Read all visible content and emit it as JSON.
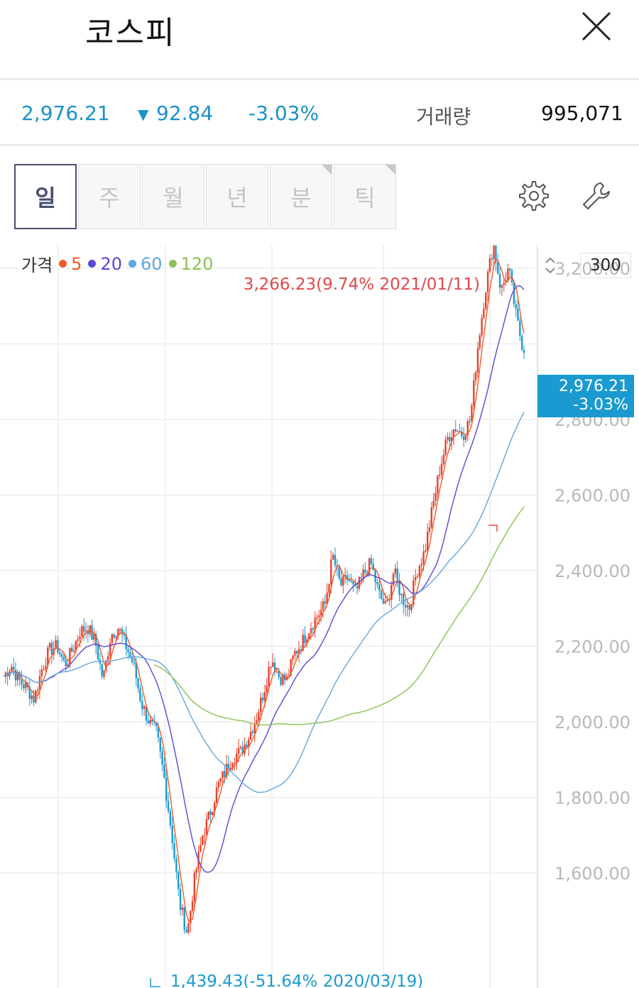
{
  "header": {
    "title": "코스피"
  },
  "quote": {
    "price": "2,976.21",
    "change_arrow": "▼",
    "change": "92.84",
    "change_pct": "-3.03%",
    "volume_label": "거래량",
    "volume": "995,071"
  },
  "tabs": [
    {
      "label": "일",
      "active": true
    },
    {
      "label": "주",
      "active": false
    },
    {
      "label": "월",
      "active": false
    },
    {
      "label": "년",
      "active": false
    },
    {
      "label": "분",
      "active": false
    },
    {
      "label": "틱",
      "active": false
    }
  ],
  "toolbar": {
    "settings_icon": "gear-icon",
    "tools_icon": "wrench-icon"
  },
  "legend": {
    "label": "가격",
    "items": [
      {
        "value": "5",
        "color": "#f05a28"
      },
      {
        "value": "20",
        "color": "#5a48d6"
      },
      {
        "value": "60",
        "color": "#5fa7e0"
      },
      {
        "value": "120",
        "color": "#8cc152"
      }
    ]
  },
  "scale": {
    "value": "300",
    "updown_icon": "chevron-updown-icon"
  },
  "current_tag": {
    "price": "2,976.21",
    "pct": "-3.03%"
  },
  "colors": {
    "accent": "#1a92c7",
    "up": "#e8412c",
    "down": "#1a9ad0",
    "tag_bg": "#1a9ad0",
    "high_label": "#e04848"
  },
  "chart_data": {
    "type": "line",
    "series": [
      {
        "name": "가격",
        "values": [
          2120,
          2150,
          2110,
          2090,
          2060,
          2140,
          2190,
          2200,
          2150,
          2190,
          2240,
          2250,
          2210,
          2110,
          2230,
          2250,
          2200,
          2150,
          2050,
          2000,
          1970,
          1850,
          1700,
          1520,
          1440,
          1590,
          1700,
          1760,
          1830,
          1870,
          1910,
          1920,
          1960,
          2010,
          2080,
          2170,
          2120,
          2110,
          2180,
          2210,
          2250,
          2280,
          2310,
          2440,
          2360,
          2380,
          2340,
          2390,
          2420,
          2340,
          2300,
          2400,
          2330,
          2300,
          2400,
          2450,
          2560,
          2670,
          2750,
          2780,
          2760,
          2800,
          3000,
          3150,
          3266,
          3140,
          3200,
          3069,
          2976
        ]
      }
    ],
    "y_ticks": [
      "3,200.00",
      "2,800.00",
      "2,600.00",
      "2,400.00",
      "2,200.00",
      "2,000.00",
      "1,800.00",
      "1,600.00"
    ],
    "ylim": [
      1400,
      3300
    ],
    "high_label": "3,266.23(9.74% 2021/01/11)",
    "low_label": "1,439.43(-51.64% 2020/03/19)"
  }
}
